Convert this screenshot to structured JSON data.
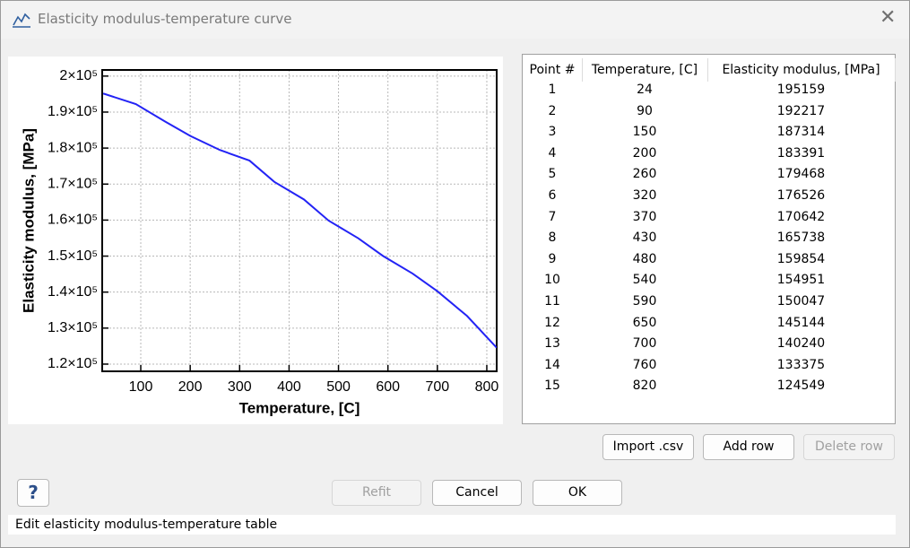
{
  "window": {
    "title": "Elasticity modulus-temperature curve"
  },
  "chart_data": {
    "type": "line",
    "x_label": "Temperature, [C]",
    "y_label": "Elasticity modulus, [MPa]",
    "x": [
      24,
      90,
      150,
      200,
      260,
      320,
      370,
      430,
      480,
      540,
      590,
      650,
      700,
      760,
      820
    ],
    "values": [
      195159,
      192217,
      187314,
      183391,
      179468,
      176526,
      170642,
      165738,
      159854,
      154951,
      150047,
      145144,
      140240,
      133375,
      124549
    ],
    "color": "#2323f5",
    "xlim": [
      22,
      820
    ],
    "ylim": [
      118000,
      201700
    ],
    "xticks": [
      100,
      200,
      300,
      400,
      500,
      600,
      700,
      800
    ],
    "yticks": [
      {
        "value": 120000,
        "label": "1.2×10⁵"
      },
      {
        "value": 130000,
        "label": "1.3×10⁵"
      },
      {
        "value": 140000,
        "label": "1.4×10⁵"
      },
      {
        "value": 150000,
        "label": "1.5×10⁵"
      },
      {
        "value": 160000,
        "label": "1.6×10⁵"
      },
      {
        "value": 170000,
        "label": "1.7×10⁵"
      },
      {
        "value": 180000,
        "label": "1.8×10⁵"
      },
      {
        "value": 190000,
        "label": "1.9×10⁵"
      },
      {
        "value": 200000,
        "label": "2×10⁵"
      }
    ],
    "grid": true
  },
  "table": {
    "columns": [
      "Point #",
      "Temperature, [C]",
      "Elasticity modulus, [MPa]"
    ],
    "point_numbers": [
      1,
      2,
      3,
      4,
      5,
      6,
      7,
      8,
      9,
      10,
      11,
      12,
      13,
      14,
      15
    ]
  },
  "buttons": {
    "import": "Import .csv",
    "add": "Add row",
    "delete": "Delete row",
    "help": "?",
    "refit": "Refit",
    "cancel": "Cancel",
    "ok": "OK"
  },
  "status": "Edit elasticity modulus-temperature table"
}
